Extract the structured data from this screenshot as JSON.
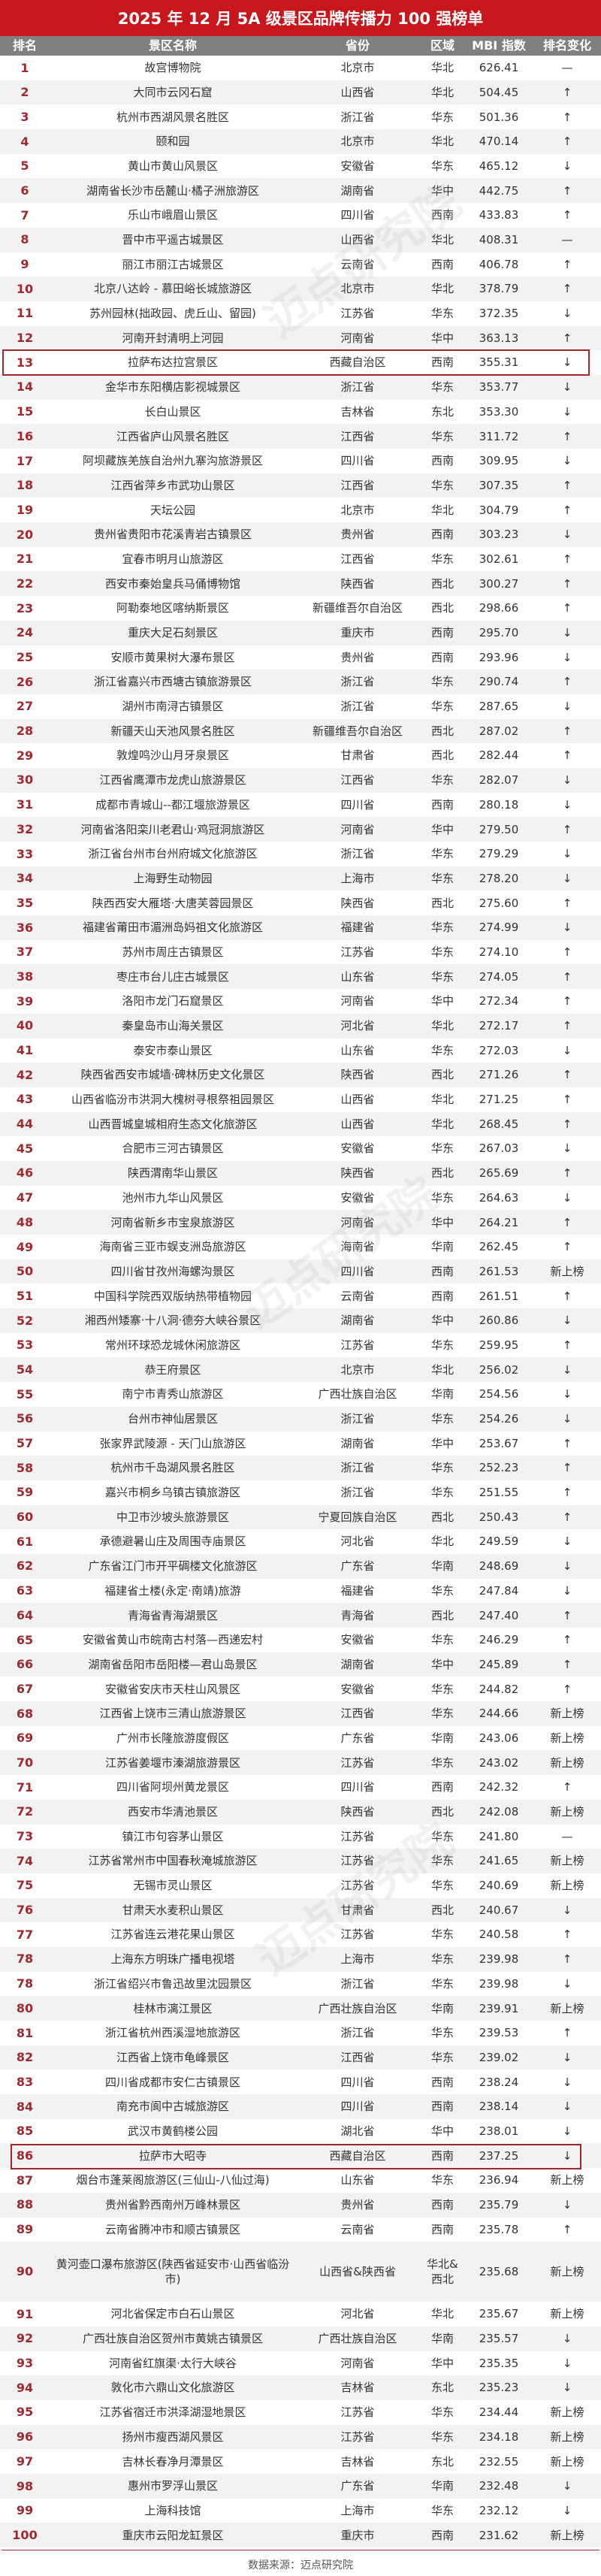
{
  "title": "2025 年 12 月 5A 级景区品牌传播力 100 强榜单",
  "columns": {
    "rank": "排名",
    "name": "景区名称",
    "province": "省份",
    "region": "区域",
    "mbi": "MBI 指数",
    "change": "排名变化"
  },
  "colors": {
    "title_bg": "#c8161d",
    "header_bg": "#808080",
    "rank_text": "#9e2a2f",
    "highlight_border": "#a3262b",
    "alt_row": "#f2f2f2"
  },
  "highlighted_ranks": [
    "13",
    "86"
  ],
  "rows": [
    {
      "rank": "1",
      "name": "故宫博物院",
      "province": "北京市",
      "region": "华北",
      "mbi": "626.41",
      "change": "—"
    },
    {
      "rank": "2",
      "name": "大同市云冈石窟",
      "province": "山西省",
      "region": "华北",
      "mbi": "504.45",
      "change": "↑"
    },
    {
      "rank": "3",
      "name": "杭州市西湖风景名胜区",
      "province": "浙江省",
      "region": "华东",
      "mbi": "501.36",
      "change": "↑"
    },
    {
      "rank": "4",
      "name": "颐和园",
      "province": "北京市",
      "region": "华北",
      "mbi": "470.14",
      "change": "↑"
    },
    {
      "rank": "5",
      "name": "黄山市黄山风景区",
      "province": "安徽省",
      "region": "华东",
      "mbi": "465.12",
      "change": "↓"
    },
    {
      "rank": "6",
      "name": "湖南省长沙市岳麓山·橘子洲旅游区",
      "province": "湖南省",
      "region": "华中",
      "mbi": "442.75",
      "change": "↑"
    },
    {
      "rank": "7",
      "name": "乐山市峨眉山景区",
      "province": "四川省",
      "region": "西南",
      "mbi": "433.83",
      "change": "↑"
    },
    {
      "rank": "8",
      "name": "晋中市平遥古城景区",
      "province": "山西省",
      "region": "华北",
      "mbi": "408.31",
      "change": "—"
    },
    {
      "rank": "9",
      "name": "丽江市丽江古城景区",
      "province": "云南省",
      "region": "西南",
      "mbi": "406.78",
      "change": "↑"
    },
    {
      "rank": "10",
      "name": "北京八达岭 - 慕田峪长城旅游区",
      "province": "北京市",
      "region": "华北",
      "mbi": "378.79",
      "change": "↑"
    },
    {
      "rank": "11",
      "name": "苏州园林(拙政园、虎丘山、留园)",
      "province": "江苏省",
      "region": "华东",
      "mbi": "372.35",
      "change": "↓"
    },
    {
      "rank": "12",
      "name": "河南开封清明上河园",
      "province": "河南省",
      "region": "华中",
      "mbi": "363.13",
      "change": "↑"
    },
    {
      "rank": "13",
      "name": "拉萨布达拉宫景区",
      "province": "西藏自治区",
      "region": "西南",
      "mbi": "355.31",
      "change": "↓"
    },
    {
      "rank": "14",
      "name": "金华市东阳横店影视城景区",
      "province": "浙江省",
      "region": "华东",
      "mbi": "353.77",
      "change": "↓"
    },
    {
      "rank": "15",
      "name": "长白山景区",
      "province": "吉林省",
      "region": "东北",
      "mbi": "353.30",
      "change": "↓"
    },
    {
      "rank": "16",
      "name": "江西省庐山风景名胜区",
      "province": "江西省",
      "region": "华东",
      "mbi": "311.72",
      "change": "↑"
    },
    {
      "rank": "17",
      "name": "阿坝藏族羌族自治州九寨沟旅游景区",
      "province": "四川省",
      "region": "西南",
      "mbi": "309.95",
      "change": "↓"
    },
    {
      "rank": "18",
      "name": "江西省萍乡市武功山景区",
      "province": "江西省",
      "region": "华东",
      "mbi": "307.35",
      "change": "↑"
    },
    {
      "rank": "19",
      "name": "天坛公园",
      "province": "北京市",
      "region": "华北",
      "mbi": "304.79",
      "change": "↑"
    },
    {
      "rank": "20",
      "name": "贵州省贵阳市花溪青岩古镇景区",
      "province": "贵州省",
      "region": "西南",
      "mbi": "303.23",
      "change": "↓"
    },
    {
      "rank": "21",
      "name": "宜春市明月山旅游区",
      "province": "江西省",
      "region": "华东",
      "mbi": "302.61",
      "change": "↑"
    },
    {
      "rank": "22",
      "name": "西安市秦始皇兵马俑博物馆",
      "province": "陕西省",
      "region": "西北",
      "mbi": "300.27",
      "change": "↑"
    },
    {
      "rank": "23",
      "name": "阿勒泰地区喀纳斯景区",
      "province": "新疆维吾尔自治区",
      "region": "西北",
      "mbi": "298.66",
      "change": "↑"
    },
    {
      "rank": "24",
      "name": "重庆大足石刻景区",
      "province": "重庆市",
      "region": "西南",
      "mbi": "295.70",
      "change": "↓"
    },
    {
      "rank": "25",
      "name": "安顺市黄果树大瀑布景区",
      "province": "贵州省",
      "region": "西南",
      "mbi": "293.96",
      "change": "↓"
    },
    {
      "rank": "26",
      "name": "浙江省嘉兴市西塘古镇旅游景区",
      "province": "浙江省",
      "region": "华东",
      "mbi": "290.74",
      "change": "↑"
    },
    {
      "rank": "27",
      "name": "湖州市南浔古镇景区",
      "province": "浙江省",
      "region": "华东",
      "mbi": "287.65",
      "change": "↓"
    },
    {
      "rank": "28",
      "name": "新疆天山天池风景名胜区",
      "province": "新疆维吾尔自治区",
      "region": "西北",
      "mbi": "287.02",
      "change": "↑"
    },
    {
      "rank": "29",
      "name": "敦煌鸣沙山月牙泉景区",
      "province": "甘肃省",
      "region": "西北",
      "mbi": "282.44",
      "change": "↑"
    },
    {
      "rank": "30",
      "name": "江西省鹰潭市龙虎山旅游景区",
      "province": "江西省",
      "region": "华东",
      "mbi": "282.07",
      "change": "↓"
    },
    {
      "rank": "31",
      "name": "成都市青城山--都江堰旅游景区",
      "province": "四川省",
      "region": "西南",
      "mbi": "280.18",
      "change": "↓"
    },
    {
      "rank": "32",
      "name": "河南省洛阳栾川老君山·鸡冠洞旅游区",
      "province": "河南省",
      "region": "华中",
      "mbi": "279.50",
      "change": "↑"
    },
    {
      "rank": "33",
      "name": "浙江省台州市台州府城文化旅游区",
      "province": "浙江省",
      "region": "华东",
      "mbi": "279.29",
      "change": "↓"
    },
    {
      "rank": "34",
      "name": "上海野生动物园",
      "province": "上海市",
      "region": "华东",
      "mbi": "278.20",
      "change": "↓"
    },
    {
      "rank": "35",
      "name": "陕西西安大雁塔·大唐芙蓉园景区",
      "province": "陕西省",
      "region": "西北",
      "mbi": "275.60",
      "change": "↑"
    },
    {
      "rank": "36",
      "name": "福建省莆田市湄洲岛妈祖文化旅游区",
      "province": "福建省",
      "region": "华东",
      "mbi": "274.99",
      "change": "↓"
    },
    {
      "rank": "37",
      "name": "苏州市周庄古镇景区",
      "province": "江苏省",
      "region": "华东",
      "mbi": "274.10",
      "change": "↑"
    },
    {
      "rank": "38",
      "name": "枣庄市台儿庄古城景区",
      "province": "山东省",
      "region": "华东",
      "mbi": "274.05",
      "change": "↑"
    },
    {
      "rank": "39",
      "name": "洛阳市龙门石窟景区",
      "province": "河南省",
      "region": "华中",
      "mbi": "272.34",
      "change": "↑"
    },
    {
      "rank": "40",
      "name": "秦皇岛市山海关景区",
      "province": "河北省",
      "region": "华北",
      "mbi": "272.17",
      "change": "↑"
    },
    {
      "rank": "41",
      "name": "泰安市泰山景区",
      "province": "山东省",
      "region": "华东",
      "mbi": "272.03",
      "change": "↓"
    },
    {
      "rank": "42",
      "name": "陕西省西安市城墙·碑林历史文化景区",
      "province": "陕西省",
      "region": "西北",
      "mbi": "271.26",
      "change": "↑"
    },
    {
      "rank": "43",
      "name": "山西省临汾市洪洞大槐树寻根祭祖园景区",
      "province": "山西省",
      "region": "华北",
      "mbi": "271.25",
      "change": "↑"
    },
    {
      "rank": "44",
      "name": "山西晋城皇城相府生态文化旅游区",
      "province": "山西省",
      "region": "华北",
      "mbi": "268.45",
      "change": "↑"
    },
    {
      "rank": "45",
      "name": "合肥市三河古镇景区",
      "province": "安徽省",
      "region": "华东",
      "mbi": "267.03",
      "change": "↓"
    },
    {
      "rank": "46",
      "name": "陕西渭南华山景区",
      "province": "陕西省",
      "region": "西北",
      "mbi": "265.69",
      "change": "↑"
    },
    {
      "rank": "47",
      "name": "池州市九华山风景区",
      "province": "安徽省",
      "region": "华东",
      "mbi": "264.63",
      "change": "↓"
    },
    {
      "rank": "48",
      "name": "河南省新乡市宝泉旅游区",
      "province": "河南省",
      "region": "华中",
      "mbi": "264.21",
      "change": "↑"
    },
    {
      "rank": "49",
      "name": "海南省三亚市蜈支洲岛旅游区",
      "province": "海南省",
      "region": "华南",
      "mbi": "262.45",
      "change": "↑"
    },
    {
      "rank": "50",
      "name": "四川省甘孜州海螺沟景区",
      "province": "四川省",
      "region": "西南",
      "mbi": "261.53",
      "change": "新上榜"
    },
    {
      "rank": "51",
      "name": "中国科学院西双版纳热带植物园",
      "province": "云南省",
      "region": "西南",
      "mbi": "261.51",
      "change": "↑"
    },
    {
      "rank": "52",
      "name": "湘西州矮寨·十八洞·德夯大峡谷景区",
      "province": "湖南省",
      "region": "华中",
      "mbi": "260.86",
      "change": "↓"
    },
    {
      "rank": "53",
      "name": "常州环球恐龙城休闲旅游区",
      "province": "江苏省",
      "region": "华东",
      "mbi": "259.95",
      "change": "↑"
    },
    {
      "rank": "54",
      "name": "恭王府景区",
      "province": "北京市",
      "region": "华北",
      "mbi": "256.02",
      "change": "↓"
    },
    {
      "rank": "55",
      "name": "南宁市青秀山旅游区",
      "province": "广西壮族自治区",
      "region": "华南",
      "mbi": "254.56",
      "change": "↓"
    },
    {
      "rank": "56",
      "name": "台州市神仙居景区",
      "province": "浙江省",
      "region": "华东",
      "mbi": "254.26",
      "change": "↓"
    },
    {
      "rank": "57",
      "name": "张家界武陵源 - 天门山旅游区",
      "province": "湖南省",
      "region": "华中",
      "mbi": "253.67",
      "change": "↑"
    },
    {
      "rank": "58",
      "name": "杭州市千岛湖风景名胜区",
      "province": "浙江省",
      "region": "华东",
      "mbi": "252.23",
      "change": "↑"
    },
    {
      "rank": "59",
      "name": "嘉兴市桐乡乌镇古镇旅游区",
      "province": "浙江省",
      "region": "华东",
      "mbi": "251.55",
      "change": "↑"
    },
    {
      "rank": "60",
      "name": "中卫市沙坡头旅游景区",
      "province": "宁夏回族自治区",
      "region": "西北",
      "mbi": "250.43",
      "change": "↑"
    },
    {
      "rank": "61",
      "name": "承德避暑山庄及周围寺庙景区",
      "province": "河北省",
      "region": "华北",
      "mbi": "249.59",
      "change": "↓"
    },
    {
      "rank": "62",
      "name": "广东省江门市开平碉楼文化旅游区",
      "province": "广东省",
      "region": "华南",
      "mbi": "248.69",
      "change": "↓"
    },
    {
      "rank": "63",
      "name": "福建省土楼(永定·南靖)旅游",
      "province": "福建省",
      "region": "华东",
      "mbi": "247.84",
      "change": "↓"
    },
    {
      "rank": "64",
      "name": "青海省青海湖景区",
      "province": "青海省",
      "region": "西北",
      "mbi": "247.40",
      "change": "↑"
    },
    {
      "rank": "65",
      "name": "安徽省黄山市皖南古村落—西递宏村",
      "province": "安徽省",
      "region": "华东",
      "mbi": "246.29",
      "change": "↑"
    },
    {
      "rank": "66",
      "name": "湖南省岳阳市岳阳楼—君山岛景区",
      "province": "湖南省",
      "region": "华中",
      "mbi": "245.89",
      "change": "↑"
    },
    {
      "rank": "67",
      "name": "安徽省安庆市天柱山风景区",
      "province": "安徽省",
      "region": "华东",
      "mbi": "244.82",
      "change": "↑"
    },
    {
      "rank": "68",
      "name": "江西省上饶市三清山旅游景区",
      "province": "江西省",
      "region": "华东",
      "mbi": "244.66",
      "change": "新上榜"
    },
    {
      "rank": "69",
      "name": "广州市长隆旅游度假区",
      "province": "广东省",
      "region": "华南",
      "mbi": "243.06",
      "change": "新上榜"
    },
    {
      "rank": "70",
      "name": "江苏省姜堰市溱湖旅游景区",
      "province": "江苏省",
      "region": "华东",
      "mbi": "243.02",
      "change": "新上榜"
    },
    {
      "rank": "71",
      "name": "四川省阿坝州黄龙景区",
      "province": "四川省",
      "region": "西南",
      "mbi": "242.32",
      "change": "↑"
    },
    {
      "rank": "72",
      "name": "西安市华清池景区",
      "province": "陕西省",
      "region": "西北",
      "mbi": "242.08",
      "change": "新上榜"
    },
    {
      "rank": "73",
      "name": "镇江市句容茅山景区",
      "province": "江苏省",
      "region": "华东",
      "mbi": "241.80",
      "change": "—"
    },
    {
      "rank": "74",
      "name": "江苏省常州市中国春秋淹城旅游区",
      "province": "江苏省",
      "region": "华东",
      "mbi": "241.65",
      "change": "新上榜"
    },
    {
      "rank": "75",
      "name": "无锡市灵山景区",
      "province": "江苏省",
      "region": "华东",
      "mbi": "240.69",
      "change": "新上榜"
    },
    {
      "rank": "76",
      "name": "甘肃天水麦积山景区",
      "province": "甘肃省",
      "region": "西北",
      "mbi": "240.67",
      "change": "↓"
    },
    {
      "rank": "77",
      "name": "江苏省连云港花果山景区",
      "province": "江苏省",
      "region": "华东",
      "mbi": "240.58",
      "change": "↑"
    },
    {
      "rank": "78",
      "name": "上海东方明珠广播电视塔",
      "province": "上海市",
      "region": "华东",
      "mbi": "239.98",
      "change": "↑"
    },
    {
      "rank": "78",
      "name": "浙江省绍兴市鲁迅故里沈园景区",
      "province": "浙江省",
      "region": "华东",
      "mbi": "239.98",
      "change": "↓"
    },
    {
      "rank": "80",
      "name": "桂林市漓江景区",
      "province": "广西壮族自治区",
      "region": "华南",
      "mbi": "239.91",
      "change": "新上榜"
    },
    {
      "rank": "81",
      "name": "浙江省杭州西溪湿地旅游区",
      "province": "浙江省",
      "region": "华东",
      "mbi": "239.53",
      "change": "↑"
    },
    {
      "rank": "82",
      "name": "江西省上饶市龟峰景区",
      "province": "江西省",
      "region": "华东",
      "mbi": "239.02",
      "change": "↓"
    },
    {
      "rank": "83",
      "name": "四川省成都市安仁古镇景区",
      "province": "四川省",
      "region": "西南",
      "mbi": "238.24",
      "change": "↓"
    },
    {
      "rank": "84",
      "name": "南充市阆中古城旅游区",
      "province": "四川省",
      "region": "西南",
      "mbi": "238.14",
      "change": "↓"
    },
    {
      "rank": "85",
      "name": "武汉市黄鹤楼公园",
      "province": "湖北省",
      "region": "华中",
      "mbi": "238.01",
      "change": "↓"
    },
    {
      "rank": "86",
      "name": "拉萨市大昭寺",
      "province": "西藏自治区",
      "region": "西南",
      "mbi": "237.25",
      "change": "↓"
    },
    {
      "rank": "87",
      "name": "烟台市蓬莱阁旅游区(三仙山-八仙过海)",
      "province": "山东省",
      "region": "华东",
      "mbi": "236.94",
      "change": "新上榜"
    },
    {
      "rank": "88",
      "name": "贵州省黔西南州万峰林景区",
      "province": "贵州省",
      "region": "西南",
      "mbi": "235.79",
      "change": "↓"
    },
    {
      "rank": "89",
      "name": "云南省腾冲市和顺古镇景区",
      "province": "云南省",
      "region": "西南",
      "mbi": "235.78",
      "change": "↑"
    },
    {
      "rank": "90",
      "name": "黄河壶口瀑布旅游区(陕西省延安市·山西省临汾市)",
      "province": "山西省&陕西省",
      "region": "华北&西北",
      "mbi": "235.68",
      "change": "新上榜"
    },
    {
      "rank": "91",
      "name": "河北省保定市白石山景区",
      "province": "河北省",
      "region": "华北",
      "mbi": "235.67",
      "change": "新上榜"
    },
    {
      "rank": "92",
      "name": "广西壮族自治区贺州市黄姚古镇景区",
      "province": "广西壮族自治区",
      "region": "华南",
      "mbi": "235.57",
      "change": "↓"
    },
    {
      "rank": "93",
      "name": "河南省红旗渠·太行大峡谷",
      "province": "河南省",
      "region": "华中",
      "mbi": "235.35",
      "change": "↓"
    },
    {
      "rank": "94",
      "name": "敦化市六鼎山文化旅游区",
      "province": "吉林省",
      "region": "东北",
      "mbi": "235.23",
      "change": "↓"
    },
    {
      "rank": "95",
      "name": "江苏省宿迁市洪泽湖湿地景区",
      "province": "江苏省",
      "region": "华东",
      "mbi": "234.44",
      "change": "新上榜"
    },
    {
      "rank": "96",
      "name": "扬州市瘦西湖风景区",
      "province": "江苏省",
      "region": "华东",
      "mbi": "234.18",
      "change": "新上榜"
    },
    {
      "rank": "97",
      "name": "吉林长春净月潭景区",
      "province": "吉林省",
      "region": "东北",
      "mbi": "232.55",
      "change": "新上榜"
    },
    {
      "rank": "98",
      "name": "惠州市罗浮山景区",
      "province": "广东省",
      "region": "华南",
      "mbi": "232.48",
      "change": "↓"
    },
    {
      "rank": "99",
      "name": "上海科技馆",
      "province": "上海市",
      "region": "华东",
      "mbi": "232.12",
      "change": "↓"
    },
    {
      "rank": "100",
      "name": "重庆市云阳龙缸景区",
      "province": "重庆市",
      "region": "西南",
      "mbi": "231.62",
      "change": "新上榜"
    }
  ],
  "footer": "数据来源：迈点研究院",
  "watermark": "迈点研究院"
}
